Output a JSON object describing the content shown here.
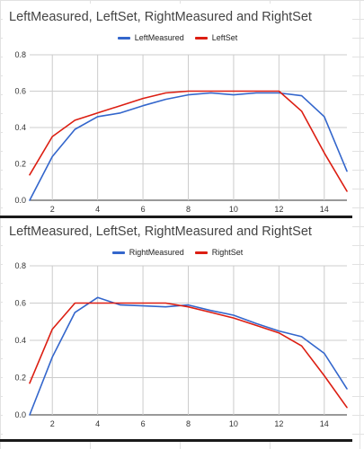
{
  "chart_data": [
    {
      "type": "line",
      "title": "LeftMeasured, LeftSet, RightMeasured and RightSet",
      "xlabel": "",
      "ylabel": "",
      "xlim": [
        1,
        15
      ],
      "ylim": [
        0,
        0.8
      ],
      "x": [
        1,
        2,
        3,
        4,
        5,
        6,
        7,
        8,
        9,
        10,
        11,
        12,
        13,
        14,
        15
      ],
      "x_ticks": [
        2,
        4,
        6,
        8,
        10,
        12,
        14
      ],
      "x_tick_labels": [
        "2",
        "4",
        "6",
        "8",
        "10",
        "12",
        "14"
      ],
      "y_ticks": [
        0,
        0.2,
        0.4,
        0.6,
        0.8
      ],
      "y_tick_labels": [
        "0.0",
        "0.2",
        "0.4",
        "0.6",
        "0.8"
      ],
      "grid": true,
      "legend_position": "top",
      "series": [
        {
          "name": "LeftMeasured",
          "color": "#3366cc",
          "values": [
            0.0,
            0.24,
            0.39,
            0.46,
            0.48,
            0.52,
            0.555,
            0.58,
            0.59,
            0.58,
            0.59,
            0.59,
            0.575,
            0.46,
            0.16
          ]
        },
        {
          "name": "LeftSet",
          "color": "#dc1e12",
          "values": [
            0.14,
            0.35,
            0.44,
            0.48,
            0.52,
            0.56,
            0.59,
            0.6,
            0.6,
            0.6,
            0.6,
            0.6,
            0.49,
            0.26,
            0.05
          ]
        }
      ]
    },
    {
      "type": "line",
      "title": "LeftMeasured, LeftSet, RightMeasured and RightSet",
      "xlabel": "",
      "ylabel": "",
      "xlim": [
        1,
        15
      ],
      "ylim": [
        0,
        0.8
      ],
      "x": [
        1,
        2,
        3,
        4,
        5,
        6,
        7,
        8,
        9,
        10,
        11,
        12,
        13,
        14,
        15
      ],
      "x_ticks": [
        2,
        4,
        6,
        8,
        10,
        12,
        14
      ],
      "x_tick_labels": [
        "2",
        "4",
        "6",
        "8",
        "10",
        "12",
        "14"
      ],
      "y_ticks": [
        0,
        0.2,
        0.4,
        0.6,
        0.8
      ],
      "y_tick_labels": [
        "0.0",
        "0.2",
        "0.4",
        "0.6",
        "0.8"
      ],
      "grid": true,
      "legend_position": "top",
      "series": [
        {
          "name": "RightMeasured",
          "color": "#3366cc",
          "values": [
            0.0,
            0.31,
            0.55,
            0.63,
            0.59,
            0.585,
            0.58,
            0.59,
            0.56,
            0.535,
            0.49,
            0.45,
            0.42,
            0.33,
            0.14
          ]
        },
        {
          "name": "RightSet",
          "color": "#dc1e12",
          "values": [
            0.17,
            0.46,
            0.6,
            0.6,
            0.6,
            0.6,
            0.6,
            0.58,
            0.55,
            0.52,
            0.48,
            0.44,
            0.37,
            0.21,
            0.04
          ]
        }
      ]
    }
  ]
}
